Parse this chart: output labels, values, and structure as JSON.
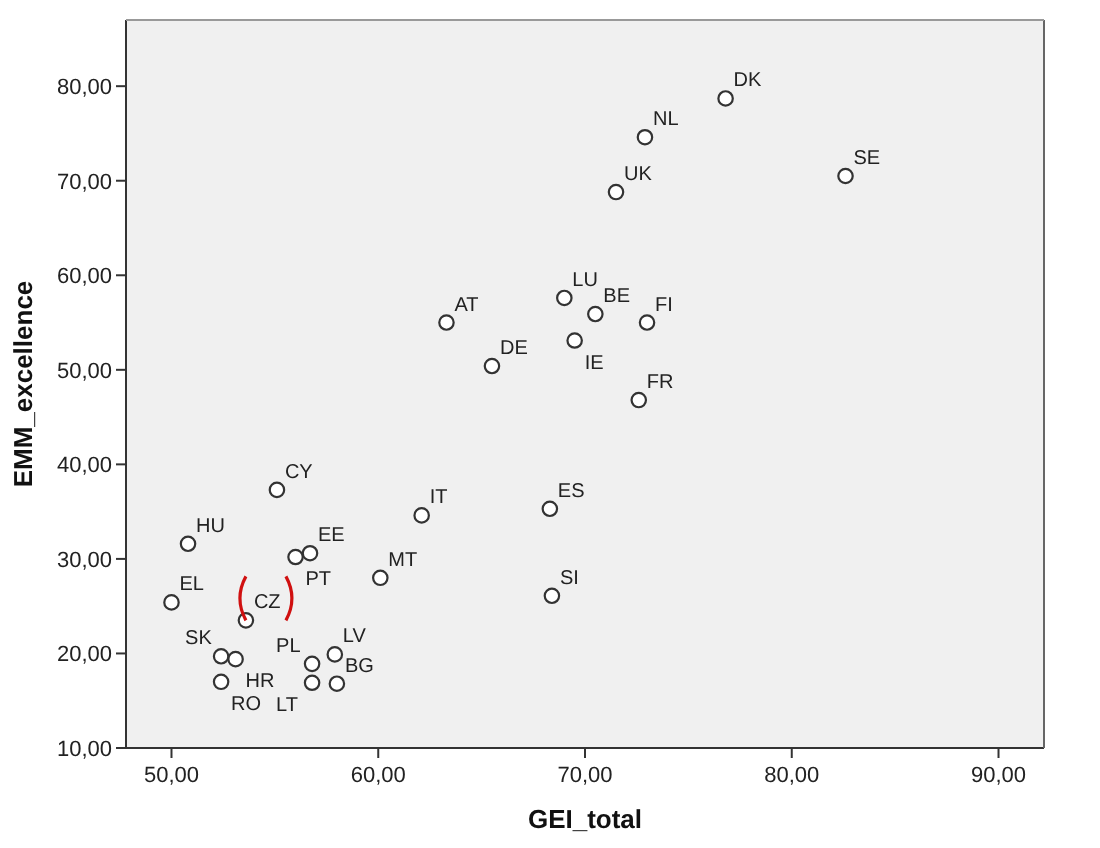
{
  "chart_data": {
    "type": "scatter",
    "xlabel": "GEI_total",
    "ylabel": "EMM_excellence",
    "xlim": [
      47.8,
      92.2
    ],
    "ylim": [
      10,
      87
    ],
    "xticks": [
      {
        "value": 50,
        "label": "50,00"
      },
      {
        "value": 60,
        "label": "60,00"
      },
      {
        "value": 70,
        "label": "70,00"
      },
      {
        "value": 80,
        "label": "80,00"
      },
      {
        "value": 90,
        "label": "90,00"
      }
    ],
    "yticks": [
      {
        "value": 10,
        "label": "10,00"
      },
      {
        "value": 20,
        "label": "20,00"
      },
      {
        "value": 30,
        "label": "30,00"
      },
      {
        "value": 40,
        "label": "40,00"
      },
      {
        "value": 50,
        "label": "50,00"
      },
      {
        "value": 60,
        "label": "60,00"
      },
      {
        "value": 70,
        "label": "70,00"
      },
      {
        "value": 80,
        "label": "80,00"
      }
    ],
    "grid": false,
    "marker": "circle",
    "annotations": [
      {
        "text": "CZ",
        "x": 53.6,
        "y": 23.5
      }
    ],
    "series": [
      {
        "name": "DK",
        "color": "#333333",
        "x": [
          76.8
        ],
        "values": [
          78.7
        ]
      },
      {
        "name": "NL",
        "color": "#333333",
        "x": [
          72.9
        ],
        "values": [
          74.6
        ]
      },
      {
        "name": "UK",
        "color": "#333333",
        "x": [
          71.5
        ],
        "values": [
          68.8
        ]
      },
      {
        "name": "SE",
        "color": "#333333",
        "x": [
          82.6
        ],
        "values": [
          70.5
        ]
      },
      {
        "name": "LU",
        "color": "#333333",
        "x": [
          69.0
        ],
        "values": [
          57.6
        ]
      },
      {
        "name": "BE",
        "color": "#333333",
        "x": [
          70.5
        ],
        "values": [
          55.9
        ]
      },
      {
        "name": "FI",
        "color": "#333333",
        "x": [
          73.0
        ],
        "values": [
          55.0
        ]
      },
      {
        "name": "AT",
        "color": "#333333",
        "x": [
          63.3
        ],
        "values": [
          55.0
        ]
      },
      {
        "name": "DE",
        "color": "#333333",
        "x": [
          65.5
        ],
        "values": [
          50.4
        ]
      },
      {
        "name": "IE",
        "color": "#333333",
        "x": [
          69.5
        ],
        "values": [
          53.1
        ]
      },
      {
        "name": "FR",
        "color": "#333333",
        "x": [
          72.6
        ],
        "values": [
          46.8
        ]
      },
      {
        "name": "CY",
        "color": "#333333",
        "x": [
          55.1
        ],
        "values": [
          37.3
        ]
      },
      {
        "name": "IT",
        "color": "#333333",
        "x": [
          62.1
        ],
        "values": [
          34.6
        ]
      },
      {
        "name": "ES",
        "color": "#333333",
        "x": [
          68.3
        ],
        "values": [
          35.3
        ]
      },
      {
        "name": "HU",
        "color": "#333333",
        "x": [
          50.8
        ],
        "values": [
          31.6
        ]
      },
      {
        "name": "EE",
        "color": "#333333",
        "x": [
          56.7
        ],
        "values": [
          30.6
        ]
      },
      {
        "name": "PT",
        "color": "#333333",
        "x": [
          56.0
        ],
        "values": [
          30.2
        ]
      },
      {
        "name": "MT",
        "color": "#333333",
        "x": [
          60.1
        ],
        "values": [
          28.0
        ]
      },
      {
        "name": "SI",
        "color": "#333333",
        "x": [
          68.4
        ],
        "values": [
          26.1
        ]
      },
      {
        "name": "EL",
        "color": "#333333",
        "x": [
          50.0
        ],
        "values": [
          25.4
        ]
      },
      {
        "color": "#333333",
        "x": [
          53.6
        ],
        "values": [
          23.5
        ]
      },
      {
        "name": "SK",
        "color": "#333333",
        "x": [
          52.4
        ],
        "values": [
          19.7
        ]
      },
      {
        "name": "HR",
        "color": "#333333",
        "x": [
          53.1
        ],
        "values": [
          19.4
        ]
      },
      {
        "name": "LV",
        "color": "#333333",
        "x": [
          57.9
        ],
        "values": [
          19.9
        ]
      },
      {
        "name": "PL",
        "color": "#333333",
        "x": [
          56.8
        ],
        "values": [
          18.9
        ]
      },
      {
        "name": "RO",
        "color": "#333333",
        "x": [
          52.4
        ],
        "values": [
          17.0
        ]
      },
      {
        "name": "LT",
        "color": "#333333",
        "x": [
          56.8
        ],
        "values": [
          16.9
        ]
      },
      {
        "name": "BG",
        "color": "#333333",
        "x": [
          58.0
        ],
        "values": [
          16.8
        ]
      }
    ]
  }
}
